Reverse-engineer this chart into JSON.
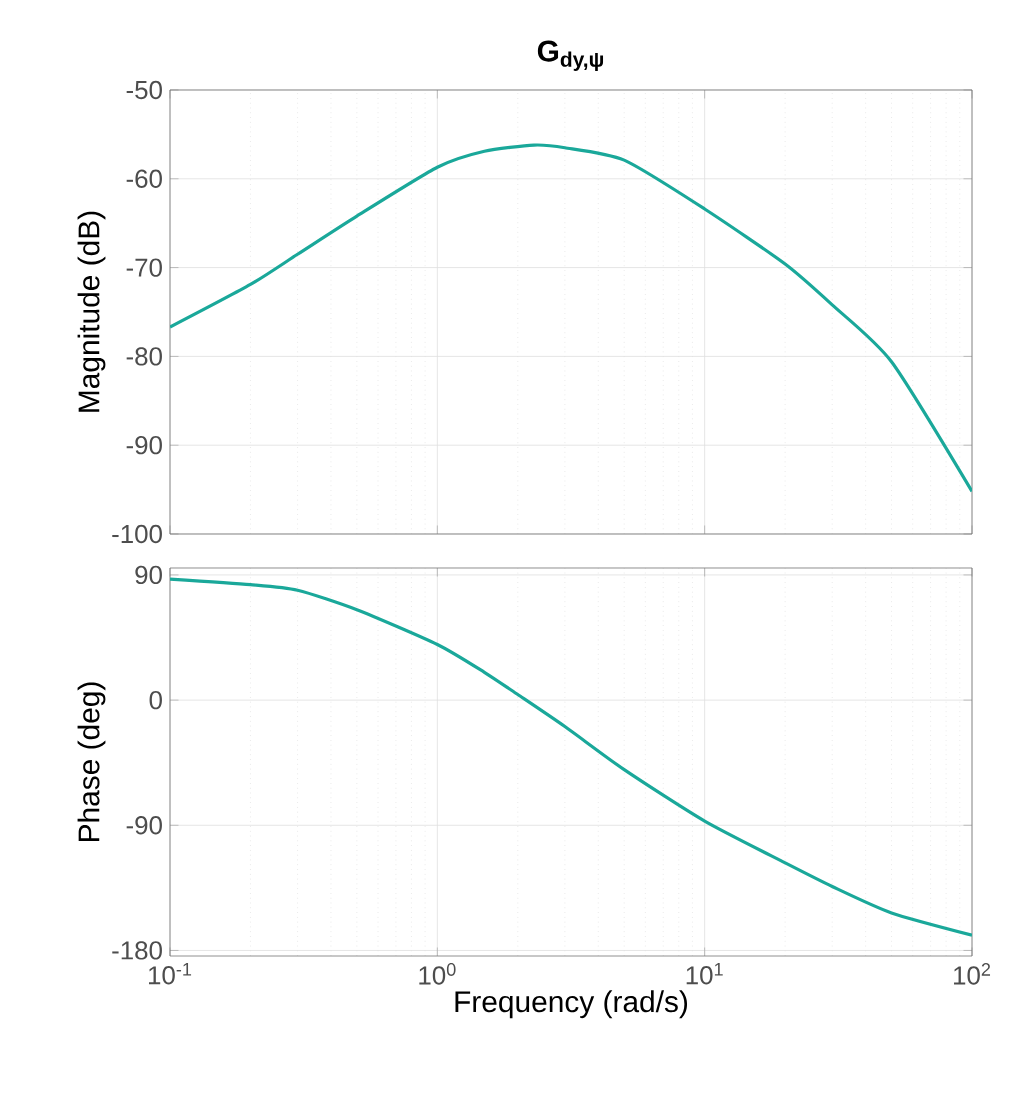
{
  "chart_data": [
    {
      "type": "line",
      "title": "G$_{dy,ψ}$",
      "ylabel": "Magnitude (dB)",
      "log": "x",
      "grid": true,
      "tick_labels": "y",
      "xlim": [
        0.1,
        100
      ],
      "xticks": [
        {
          "value": 0.1,
          "label": null
        },
        {
          "value": 1,
          "label": null
        },
        {
          "value": 10,
          "label": null
        },
        {
          "value": 100,
          "label": null
        }
      ],
      "ylim": [
        -100,
        -50
      ],
      "yticks": [
        -100,
        -90,
        -80,
        -70,
        -60,
        -50
      ],
      "series": [
        {
          "color": "#1aa89a",
          "x": [
            0.1,
            0.2,
            0.3,
            0.5,
            1,
            1.5,
            2.3,
            3,
            5,
            10,
            20,
            30,
            50,
            100
          ],
          "values": [
            -76.7,
            -71.9,
            -68.5,
            -64.2,
            -58.7,
            -56.9,
            -56.2,
            -56.5,
            -57.9,
            -63.4,
            -69.6,
            -74.2,
            -80.6,
            -95.2
          ]
        }
      ]
    },
    {
      "type": "line",
      "xlabel": "Frequency  (rad/s)",
      "ylabel": "Phase (deg)",
      "log": "x",
      "grid": true,
      "xlim": [
        0.1,
        100
      ],
      "xticks": [
        {
          "value": 0.1,
          "label": "10$^{-1}$"
        },
        {
          "value": 1,
          "label": "10$^{0}$"
        },
        {
          "value": 10,
          "label": "10$^{1}$"
        },
        {
          "value": 100,
          "label": "10$^{2}$"
        }
      ],
      "ylim": [
        -184,
        95
      ],
      "yticks": [
        -180,
        -90,
        0,
        90
      ],
      "series": [
        {
          "color": "#1aa89a",
          "x": [
            0.1,
            0.2,
            0.3,
            0.5,
            1,
            1.5,
            2,
            3,
            5,
            10,
            20,
            30,
            50,
            100
          ],
          "values": [
            87,
            83,
            79,
            65,
            40,
            20,
            4,
            -19,
            -50,
            -87,
            -117,
            -134,
            -153,
            -169
          ]
        }
      ]
    }
  ]
}
